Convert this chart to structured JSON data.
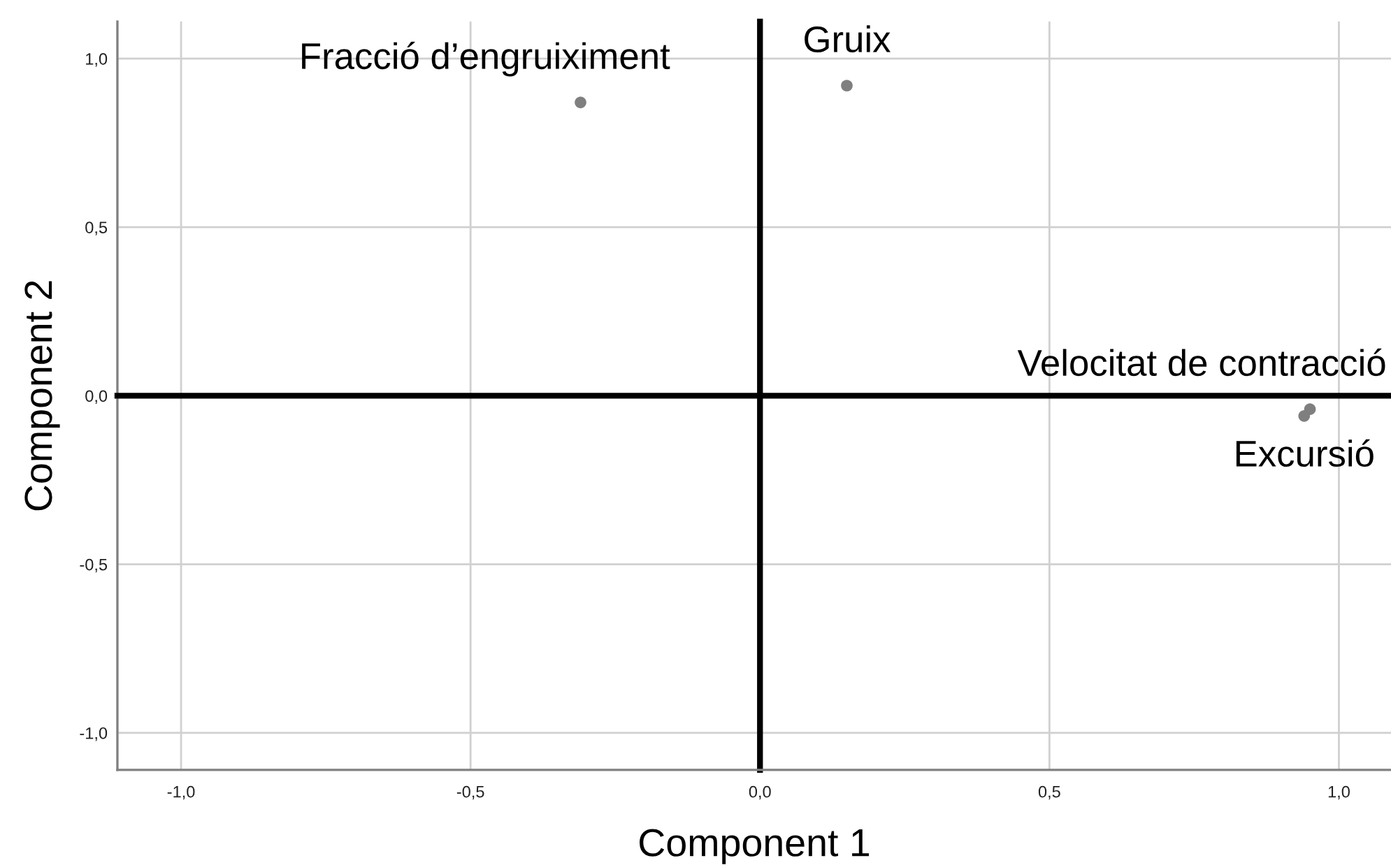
{
  "chart_data": {
    "type": "scatter",
    "xlabel": "Component 1",
    "ylabel": "Component 2",
    "x": [
      -0.31,
      0.15,
      0.95,
      0.94
    ],
    "series": [
      {
        "color": "#7f7f7f",
        "values": [
          0.87,
          0.92,
          -0.04,
          -0.06
        ]
      }
    ],
    "xlim": [
      -1.11,
      1.09
    ],
    "ylim": [
      -1.11,
      1.11
    ],
    "xticks": [
      {
        "value": -1.0,
        "label": "-1,0"
      },
      {
        "value": -0.5,
        "label": "-0,5"
      },
      {
        "value": 0.0,
        "label": "0,0"
      },
      {
        "value": 0.5,
        "label": "0,5"
      },
      {
        "value": 1.0,
        "label": "1,0"
      }
    ],
    "yticks": [
      {
        "value": -1.0,
        "label": "-1,0"
      },
      {
        "value": -0.5,
        "label": "-0,5"
      },
      {
        "value": 0.0,
        "label": "0,0"
      },
      {
        "value": 0.5,
        "label": "0,5"
      },
      {
        "value": 1.0,
        "label": "1,0"
      }
    ],
    "grid": true,
    "marker": "circle",
    "annotations": [
      {
        "text": "Fracció d’engruiximent",
        "x": -0.31,
        "y": 0.87
      },
      {
        "text": "Gruix",
        "x": 0.15,
        "y": 0.92
      },
      {
        "text": "Velocitat de contracció",
        "x": 0.95,
        "y": -0.04
      },
      {
        "text": "Excursió",
        "x": 0.94,
        "y": -0.06
      }
    ]
  }
}
